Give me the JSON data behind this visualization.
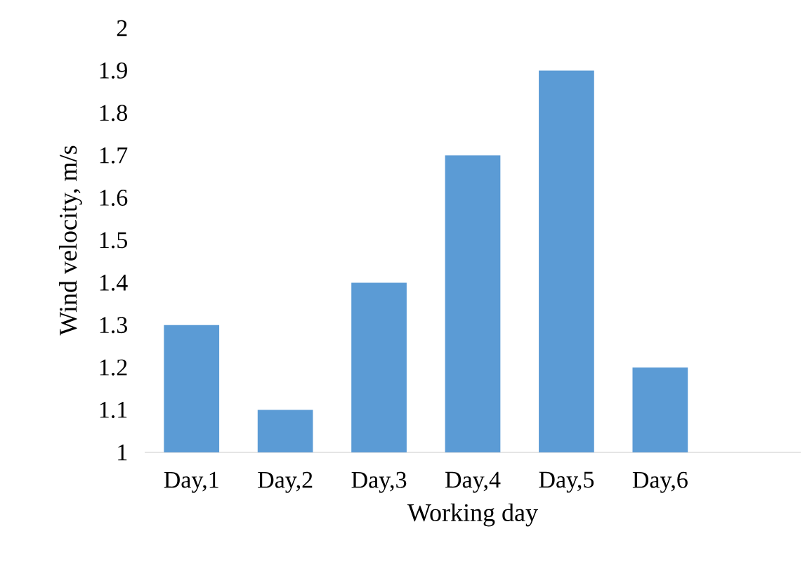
{
  "chart_data": {
    "type": "bar",
    "xlabel": "Working day",
    "ylabel": "Wind velocity, m/s",
    "categories": [
      "Day,1",
      "Day,2",
      "Day,3",
      "Day,4",
      "Day,5",
      "Day,6",
      null
    ],
    "values": [
      1.3,
      1.1,
      1.4,
      1.7,
      1.9,
      1.2,
      null
    ],
    "color": "#5b9bd5",
    "ylim": [
      1,
      2
    ],
    "yticks": [
      1,
      1.1,
      1.2,
      1.3,
      1.4,
      1.5,
      1.6,
      1.7,
      1.8,
      1.9,
      2
    ]
  }
}
